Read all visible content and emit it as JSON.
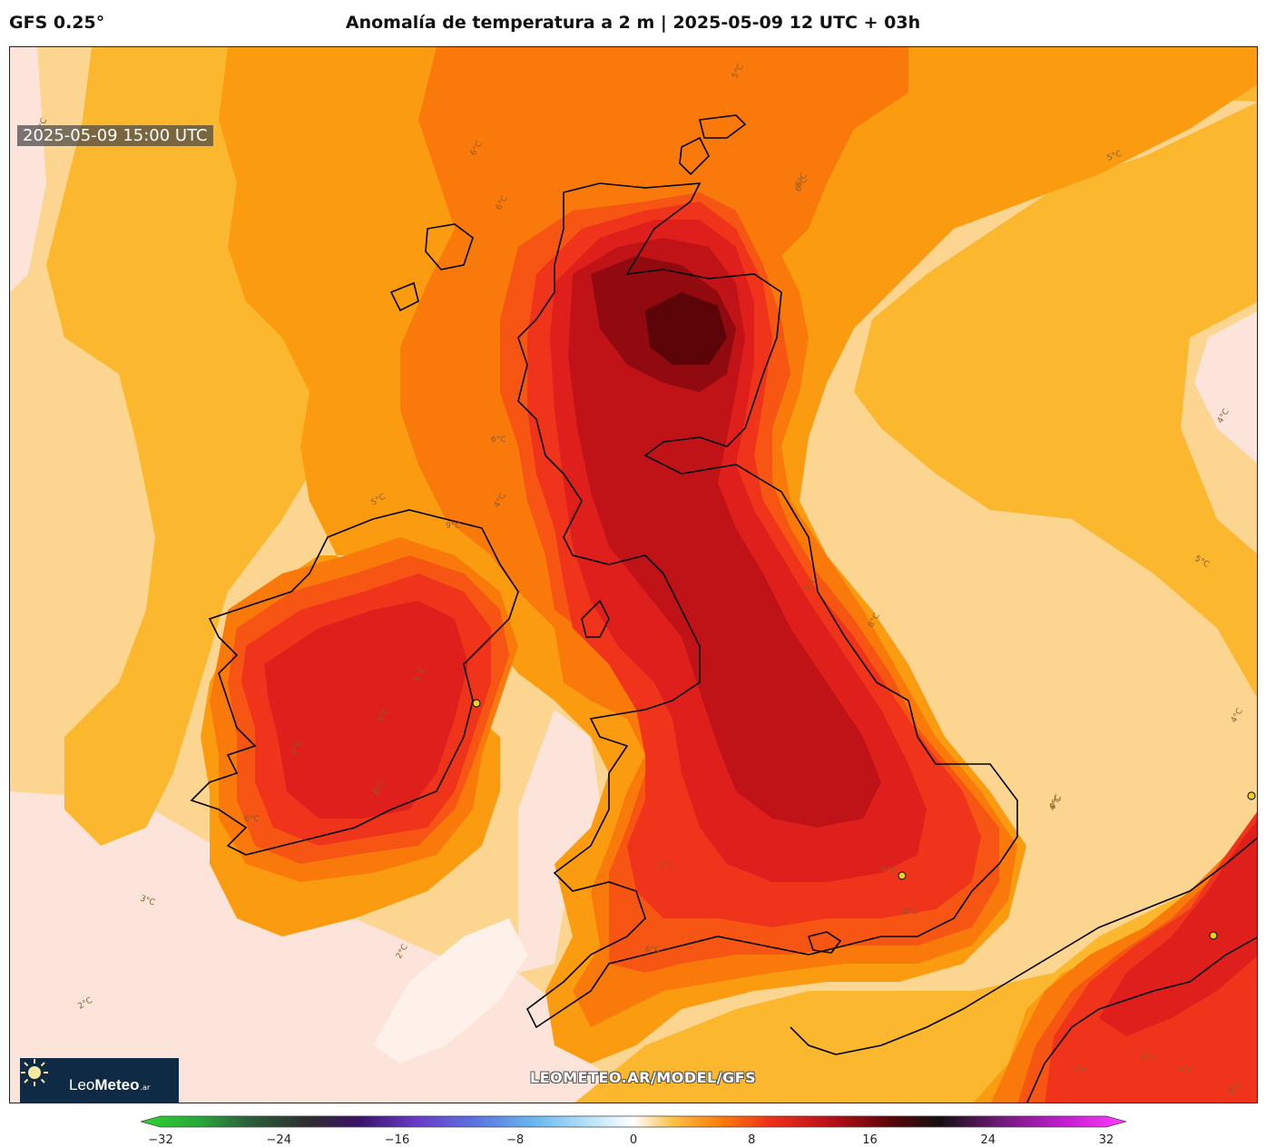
{
  "header": {
    "model": "GFS 0.25°",
    "title": "Anomalía de temperatura a 2 m | 2025-05-09 12 UTC + 03h"
  },
  "map": {
    "timestamp": "2025-05-09 15:00 UTC",
    "watermark": "LEOMETEO.AR/MODEL/GFS",
    "contour_labels": [
      "3°C",
      "6°C",
      "6°C",
      "5°C",
      "6°C",
      "5°C",
      "4°C",
      "6°C",
      "5°C",
      "4°C",
      "5°C",
      "9°C",
      "9°C",
      "9°C",
      "8°C",
      "6°C",
      "6°C",
      "3°C",
      "2°C",
      "2°C",
      "6°C",
      "7°C",
      "9°C",
      "8°C",
      "4°C",
      "6°C",
      "9°C",
      "8°C",
      "7°C",
      "6°C",
      "5°C",
      "4°C",
      "4°C",
      "4°C"
    ],
    "colors": {
      "zero_band": "#fde4da",
      "light_band": "#fcd690",
      "anom_3": "#fbb72e",
      "anom_5": "#fb9b0f",
      "anom_6": "#f97a0b",
      "anom_7": "#f65513",
      "anom_8": "#f0341b",
      "anom_9": "#df1f1b",
      "anom_11": "#c01318",
      "anom_13": "#900a10",
      "anom_15": "#5c0508"
    }
  },
  "logo": {
    "brand_light": "Leo",
    "brand_bold": "Meteo",
    "tld": ".ar"
  },
  "colorbar": {
    "min": -32,
    "max": 32,
    "ticks": [
      "−32",
      "−24",
      "−16",
      "−8",
      "0",
      "8",
      "16",
      "24",
      "32"
    ],
    "tick_values": [
      -32,
      -24,
      -16,
      -8,
      0,
      8,
      16,
      24,
      32
    ]
  }
}
